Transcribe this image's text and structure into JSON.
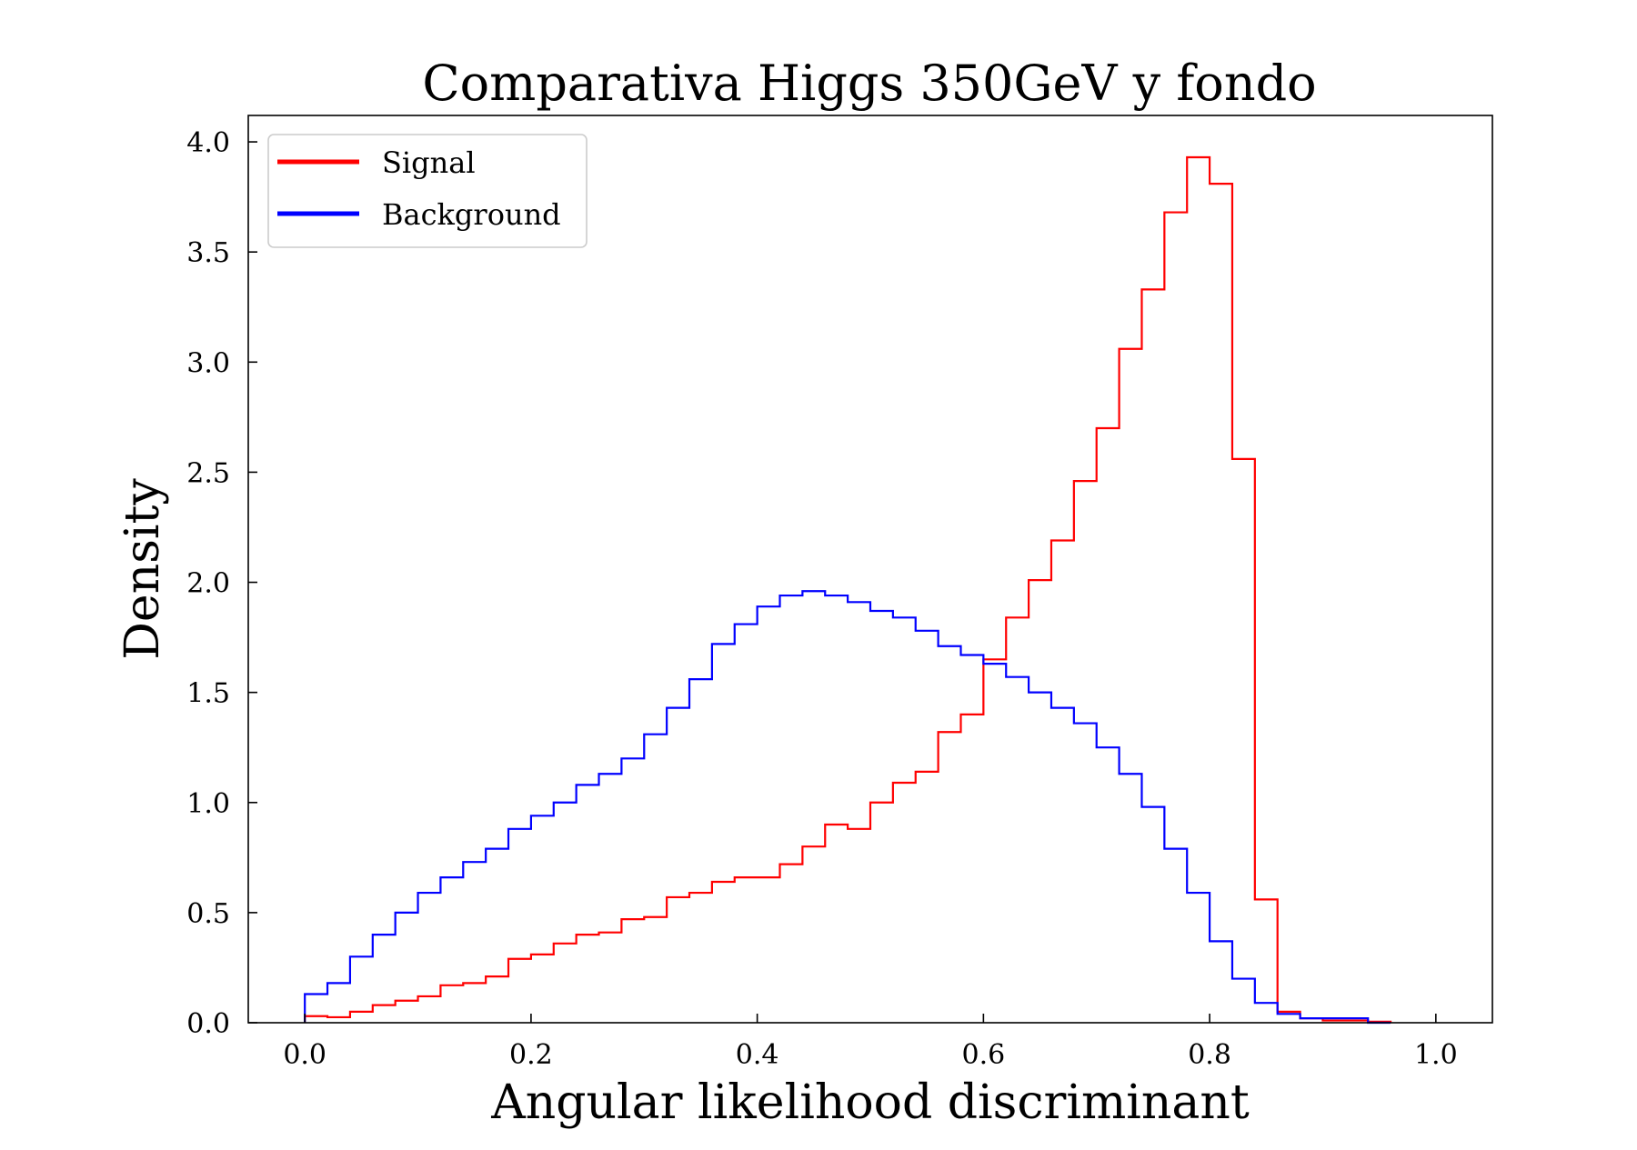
{
  "chart_data": {
    "type": "histogram",
    "title": "Comparativa Higgs 350GeV y fondo",
    "xlabel": "Angular likelihood discriminant",
    "ylabel": "Density",
    "xlim": [
      -0.05,
      1.05
    ],
    "ylim": [
      0.0,
      4.12
    ],
    "x_ticks": [
      "0.0",
      "0.2",
      "0.4",
      "0.6",
      "0.8",
      "1.0"
    ],
    "y_ticks": [
      "0.0",
      "0.5",
      "1.0",
      "1.5",
      "2.0",
      "2.5",
      "3.0",
      "3.5",
      "4.0"
    ],
    "x_tick_values": [
      0.0,
      0.2,
      0.4,
      0.6,
      0.8,
      1.0
    ],
    "y_tick_values": [
      0.0,
      0.5,
      1.0,
      1.5,
      2.0,
      2.5,
      3.0,
      3.5,
      4.0
    ],
    "grid": false,
    "legend_position": "top-left",
    "bin_edges": [
      0.0,
      0.02,
      0.04,
      0.06,
      0.08,
      0.1,
      0.12,
      0.14,
      0.16,
      0.18,
      0.2,
      0.22,
      0.24,
      0.26,
      0.28,
      0.3,
      0.32,
      0.34,
      0.36,
      0.38,
      0.4,
      0.42,
      0.44,
      0.46,
      0.48,
      0.5,
      0.52,
      0.54,
      0.56,
      0.58,
      0.6,
      0.62,
      0.64,
      0.66,
      0.68,
      0.7,
      0.72,
      0.74,
      0.76,
      0.78,
      0.8,
      0.82,
      0.84,
      0.86,
      0.88,
      0.9,
      0.92,
      0.94,
      0.96
    ],
    "series": [
      {
        "name": "Signal",
        "color": "#ff0000",
        "values": [
          0.03,
          0.025,
          0.05,
          0.08,
          0.1,
          0.12,
          0.17,
          0.18,
          0.21,
          0.29,
          0.31,
          0.36,
          0.4,
          0.41,
          0.47,
          0.48,
          0.57,
          0.59,
          0.64,
          0.66,
          0.66,
          0.72,
          0.8,
          0.9,
          0.88,
          1.0,
          1.09,
          1.14,
          1.32,
          1.4,
          1.65,
          1.84,
          2.01,
          2.19,
          2.46,
          2.7,
          3.06,
          3.33,
          3.68,
          3.93,
          3.81,
          2.56,
          0.56,
          0.05,
          0.02,
          0.01,
          0.01,
          0.005
        ]
      },
      {
        "name": "Background",
        "color": "#0000ff",
        "values": [
          0.13,
          0.18,
          0.3,
          0.4,
          0.5,
          0.59,
          0.66,
          0.73,
          0.79,
          0.88,
          0.94,
          1.0,
          1.08,
          1.13,
          1.2,
          1.31,
          1.43,
          1.56,
          1.72,
          1.81,
          1.89,
          1.94,
          1.96,
          1.94,
          1.91,
          1.87,
          1.84,
          1.78,
          1.71,
          1.67,
          1.63,
          1.57,
          1.5,
          1.43,
          1.36,
          1.25,
          1.13,
          0.98,
          0.79,
          0.59,
          0.37,
          0.2,
          0.09,
          0.04,
          0.02,
          0.02,
          0.02,
          0.0
        ]
      }
    ]
  }
}
